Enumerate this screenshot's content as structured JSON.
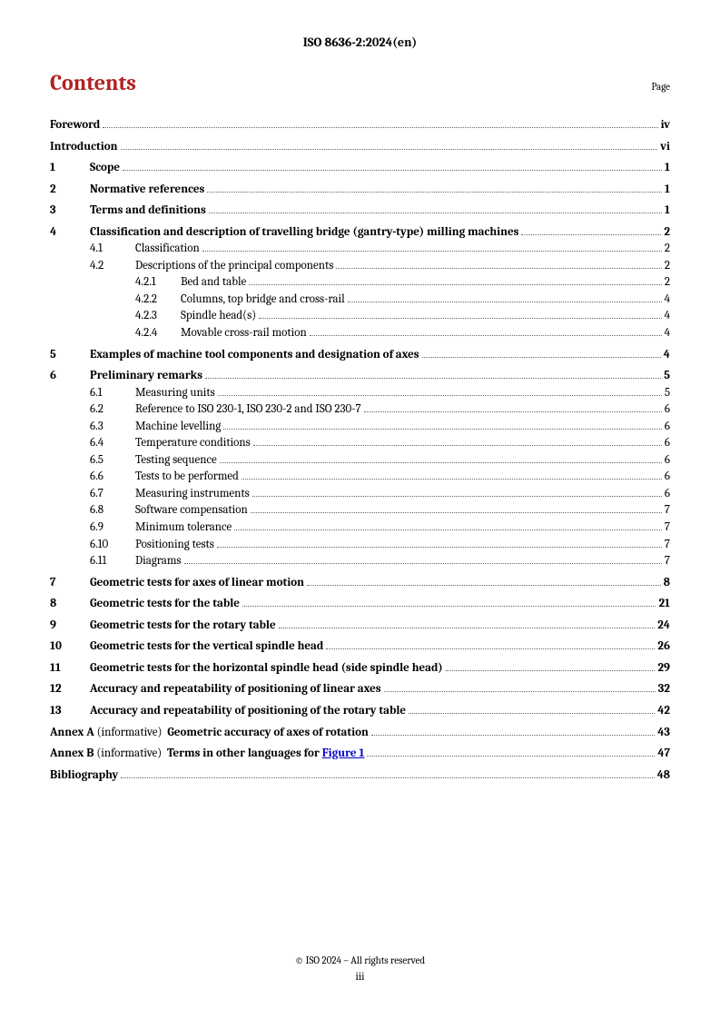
{
  "header": "ISO 8636-2:2024(en)",
  "title": "Contents",
  "pageLabel": "Page",
  "footer": {
    "copyright": "© ISO 2024 – All rights reserved",
    "pagenum": "iii"
  },
  "annex": {
    "a_label": "Annex A",
    "a_info": "(informative)",
    "a_title": "Geometric accuracy of axes of rotation",
    "a_page": "43",
    "b_label": "Annex B",
    "b_info": "(informative)",
    "b_title_pre": "Terms in other languages for ",
    "b_link": "Figure 1",
    "b_page": "47"
  },
  "entries": {
    "foreword": {
      "label": "Foreword",
      "page": "iv"
    },
    "introduction": {
      "label": "Introduction",
      "page": "vi"
    },
    "s1": {
      "num": "1",
      "label": "Scope",
      "page": "1"
    },
    "s2": {
      "num": "2",
      "label": "Normative references",
      "page": "1"
    },
    "s3": {
      "num": "3",
      "label": "Terms and definitions",
      "page": "1"
    },
    "s4": {
      "num": "4",
      "label": "Classification and description of travelling bridge (gantry-type) milling machines",
      "page": "2"
    },
    "s4_1": {
      "num": "4.1",
      "label": "Classification",
      "page": "2"
    },
    "s4_2": {
      "num": "4.2",
      "label": "Descriptions of the principal components",
      "page": "2"
    },
    "s4_2_1": {
      "num": "4.2.1",
      "label": "Bed and table",
      "page": "2"
    },
    "s4_2_2": {
      "num": "4.2.2",
      "label": "Columns, top bridge and cross-rail",
      "page": "4"
    },
    "s4_2_3": {
      "num": "4.2.3",
      "label": "Spindle head(s)",
      "page": "4"
    },
    "s4_2_4": {
      "num": "4.2.4",
      "label": "Movable cross-rail motion",
      "page": "4"
    },
    "s5": {
      "num": "5",
      "label": "Examples of machine tool components and designation of axes",
      "page": "4"
    },
    "s6": {
      "num": "6",
      "label": "Preliminary remarks",
      "page": "5"
    },
    "s6_1": {
      "num": "6.1",
      "label": "Measuring units",
      "page": "5"
    },
    "s6_2": {
      "num": "6.2",
      "label": "Reference to ISO 230-1, ISO 230-2 and ISO 230-7",
      "page": "6"
    },
    "s6_3": {
      "num": "6.3",
      "label": "Machine levelling",
      "page": "6"
    },
    "s6_4": {
      "num": "6.4",
      "label": "Temperature conditions",
      "page": "6"
    },
    "s6_5": {
      "num": "6.5",
      "label": "Testing sequence",
      "page": "6"
    },
    "s6_6": {
      "num": "6.6",
      "label": "Tests to be performed",
      "page": "6"
    },
    "s6_7": {
      "num": "6.7",
      "label": "Measuring instruments",
      "page": "6"
    },
    "s6_8": {
      "num": "6.8",
      "label": "Software compensation",
      "page": "7"
    },
    "s6_9": {
      "num": "6.9",
      "label": "Minimum tolerance",
      "page": "7"
    },
    "s6_10": {
      "num": "6.10",
      "label": "Positioning tests",
      "page": "7"
    },
    "s6_11": {
      "num": "6.11",
      "label": "Diagrams",
      "page": "7"
    },
    "s7": {
      "num": "7",
      "label": "Geometric tests for axes of linear motion",
      "page": "8"
    },
    "s8": {
      "num": "8",
      "label": "Geometric tests for the table",
      "page": "21"
    },
    "s9": {
      "num": "9",
      "label": "Geometric tests for the rotary table",
      "page": "24"
    },
    "s10": {
      "num": "10",
      "label": "Geometric tests for the vertical spindle head",
      "page": "26"
    },
    "s11": {
      "num": "11",
      "label": "Geometric tests for the horizontal spindle head (side spindle head)",
      "page": "29"
    },
    "s12": {
      "num": "12",
      "label": "Accuracy and repeatability of positioning of linear axes",
      "page": "32"
    },
    "s13": {
      "num": "13",
      "label": "Accuracy and repeatability of positioning of the rotary table",
      "page": "42"
    },
    "bibliography": {
      "label": "Bibliography",
      "page": "48"
    }
  }
}
